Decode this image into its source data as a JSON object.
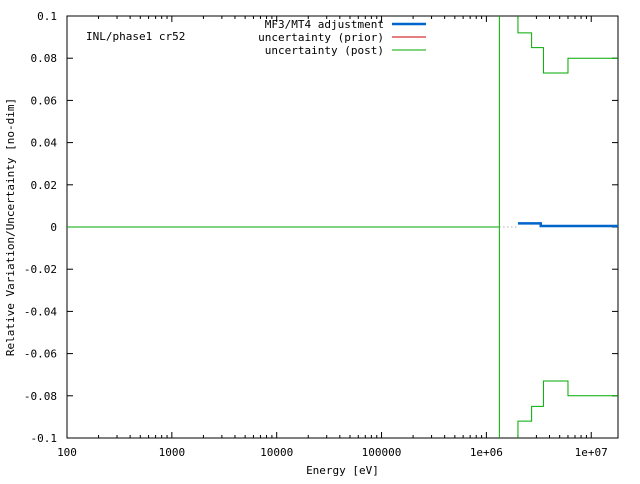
{
  "chart_data": {
    "type": "line",
    "annotation": "INL/phase1 cr52",
    "xlabel": "Energy [eV]",
    "ylabel": "Relative Variation/Uncertainty [no-dim]",
    "xscale": "log",
    "xlim": [
      100,
      18000000
    ],
    "ylim": [
      -0.1,
      0.1
    ],
    "grid": false,
    "legend_position": "top-right",
    "x_ticks": [
      {
        "value": 100,
        "label": "100"
      },
      {
        "value": 1000,
        "label": "1000"
      },
      {
        "value": 10000,
        "label": "10000"
      },
      {
        "value": 100000,
        "label": "100000"
      },
      {
        "value": 1000000,
        "label": "1e+06"
      },
      {
        "value": 10000000,
        "label": "1e+07"
      }
    ],
    "y_ticks": [
      {
        "value": 0.1,
        "label": "0.1"
      },
      {
        "value": 0.08,
        "label": "0.08"
      },
      {
        "value": 0.06,
        "label": "0.06"
      },
      {
        "value": 0.04,
        "label": "0.04"
      },
      {
        "value": 0.02,
        "label": "0.02"
      },
      {
        "value": 0,
        "label": "0"
      },
      {
        "value": -0.02,
        "label": "-0.02"
      },
      {
        "value": -0.04,
        "label": "-0.04"
      },
      {
        "value": -0.06,
        "label": "-0.06"
      },
      {
        "value": -0.08,
        "label": "-0.08"
      },
      {
        "value": -0.1,
        "label": "-0.1"
      }
    ],
    "series": [
      {
        "name": "MF3/MT4 adjustment",
        "color": "#0066cc",
        "style": "step",
        "points": [
          [
            2000000,
            0.0017
          ],
          [
            3300000,
            0.0017
          ],
          [
            3300000,
            0.0005
          ],
          [
            18000000,
            0.0005
          ]
        ]
      },
      {
        "name": "uncertainty (prior)",
        "color": "#cc0000",
        "style": "step",
        "points": []
      },
      {
        "name": "uncertainty (post)",
        "color": "#00aa00",
        "style": "step",
        "segments": [
          [
            [
              100,
              0
            ],
            [
              1330000,
              0
            ]
          ],
          [
            [
              1330000,
              0.1
            ],
            [
              1330000,
              -0.1
            ]
          ],
          [
            [
              2000000,
              0.1
            ],
            [
              2000000,
              0.092
            ],
            [
              2700000,
              0.092
            ],
            [
              2700000,
              0.085
            ],
            [
              3500000,
              0.085
            ],
            [
              3500000,
              0.073
            ],
            [
              6000000,
              0.073
            ],
            [
              6000000,
              0.08
            ],
            [
              10000000,
              0.08
            ],
            [
              10000000,
              0.08
            ],
            [
              18000000,
              0.08
            ]
          ],
          [
            [
              2000000,
              -0.1
            ],
            [
              2000000,
              -0.092
            ],
            [
              2700000,
              -0.092
            ],
            [
              2700000,
              -0.085
            ],
            [
              3500000,
              -0.085
            ],
            [
              3500000,
              -0.073
            ],
            [
              6000000,
              -0.073
            ],
            [
              6000000,
              -0.08
            ],
            [
              10000000,
              -0.08
            ],
            [
              18000000,
              -0.08
            ]
          ]
        ]
      },
      {
        "name": "",
        "color": "#888888",
        "style": "dotted",
        "points": [
          [
            1330000,
            0
          ],
          [
            2000000,
            0
          ]
        ]
      }
    ]
  }
}
